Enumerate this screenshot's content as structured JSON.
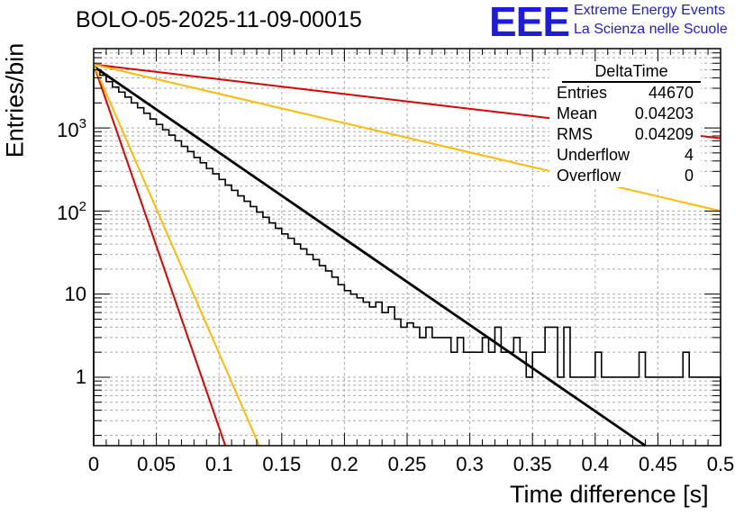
{
  "header": {
    "title": "BOLO-05-2025-11-09-00015",
    "logo_text": "EEE",
    "logo_line1": "Extreme Energy Events",
    "logo_line2": "La Scienza nelle Scuole"
  },
  "stats": {
    "title": "DeltaTime",
    "rows": [
      {
        "label": "Entries",
        "value": "44670"
      },
      {
        "label": "Mean",
        "value": "0.04203"
      },
      {
        "label": "RMS",
        "value": "0.04209"
      },
      {
        "label": "Underflow",
        "value": "4"
      },
      {
        "label": "Overflow",
        "value": "0"
      }
    ]
  },
  "colors": {
    "histogram": "#000000",
    "fit": "#000000",
    "red": "#e00000",
    "orange": "#ffbb00",
    "grid": "#aaaaaa"
  },
  "chart_data": {
    "type": "line",
    "title": "BOLO-05-2025-11-09-00015",
    "xlabel": "Time difference [s]",
    "ylabel": "Entries/bin",
    "xlim": [
      0,
      0.5
    ],
    "ylim": [
      0.15,
      9000
    ],
    "yscale": "log",
    "grid": true,
    "x_ticks": [
      "0",
      "0.05",
      "0.1",
      "0.15",
      "0.2",
      "0.25",
      "0.3",
      "0.35",
      "0.4",
      "0.45",
      "0.5"
    ],
    "y_ticks": [
      {
        "value": 1,
        "label": "1",
        "sup": ""
      },
      {
        "value": 10,
        "label": "10",
        "sup": ""
      },
      {
        "value": 100,
        "label": "10",
        "sup": "2"
      },
      {
        "value": 1000,
        "label": "10",
        "sup": "3"
      }
    ],
    "series": [
      {
        "name": "DeltaTime histogram",
        "style": "step",
        "color": "#000000",
        "bin_width": 0.005,
        "values": [
          5000,
          4300,
          3600,
          3100,
          2700,
          2350,
          2000,
          1750,
          1500,
          1280,
          1100,
          950,
          820,
          700,
          600,
          520,
          440,
          380,
          325,
          280,
          240,
          205,
          177,
          152,
          131,
          113,
          97,
          84,
          72,
          62,
          53,
          47,
          40,
          35,
          30,
          26,
          22,
          19,
          16,
          13,
          11,
          10,
          9,
          8,
          7,
          8,
          6,
          7,
          5,
          4,
          4.5,
          4,
          3,
          4,
          3,
          3,
          3,
          2,
          3,
          2,
          2,
          2,
          3,
          2,
          4,
          2,
          2,
          3,
          2,
          1,
          2,
          2,
          4,
          4,
          1,
          4,
          1,
          1,
          1,
          1,
          2,
          1,
          1,
          1,
          1,
          1,
          1,
          2,
          1,
          1,
          1,
          1,
          1,
          1,
          2,
          1,
          1,
          1,
          1,
          1
        ]
      },
      {
        "name": "Fit",
        "style": "line",
        "color": "#000000",
        "x": [
          0,
          0.44
        ],
        "y": [
          5500,
          0.15
        ]
      },
      {
        "name": "Red steep",
        "style": "line",
        "color": "#e00000",
        "x": [
          0,
          0.105
        ],
        "y": [
          5800,
          0.15
        ]
      },
      {
        "name": "Orange steep",
        "style": "line",
        "color": "#ffbb00",
        "x": [
          0,
          0.132
        ],
        "y": [
          5800,
          0.15
        ]
      },
      {
        "name": "Red shallow",
        "style": "line",
        "color": "#e00000",
        "x": [
          0,
          0.5
        ],
        "y": [
          5800,
          750
        ]
      },
      {
        "name": "Orange shallow",
        "style": "line",
        "color": "#ffbb00",
        "x": [
          0,
          0.5
        ],
        "y": [
          5800,
          100
        ]
      }
    ]
  }
}
